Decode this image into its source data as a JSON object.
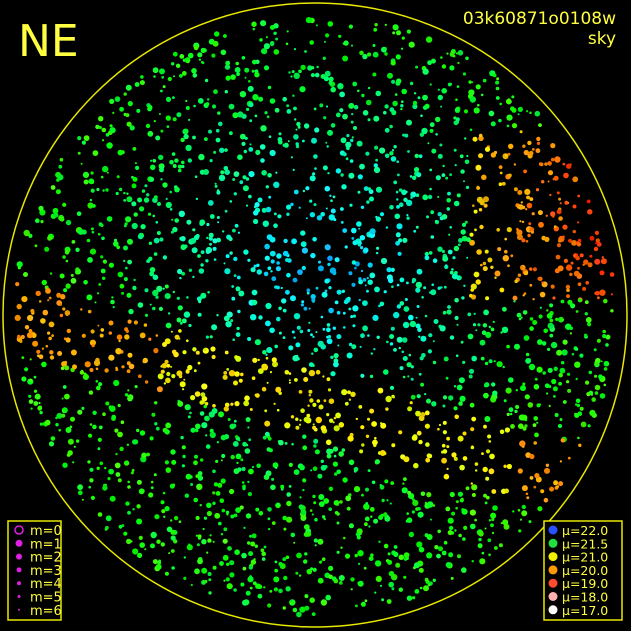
{
  "header": {
    "corner": "NE",
    "frame_id": "03k60871o0108w",
    "mode": "sky"
  },
  "magnitude_legend": [
    "m=0",
    "m=1",
    "m=2",
    "m=3",
    "m=4",
    "m=5",
    "m=6"
  ],
  "brightness_legend": [
    {
      "label": "μ=22.0",
      "color": "#2a50ff"
    },
    {
      "label": "μ=21.5",
      "color": "#20e040"
    },
    {
      "label": "μ=21.0",
      "color": "#f0f000"
    },
    {
      "label": "μ=20.0",
      "color": "#ff9a00"
    },
    {
      "label": "μ=19.0",
      "color": "#ff4a30"
    },
    {
      "label": "μ=18.0",
      "color": "#ffb0b0"
    },
    {
      "label": "μ=17.0",
      "color": "#ffffff"
    }
  ]
}
